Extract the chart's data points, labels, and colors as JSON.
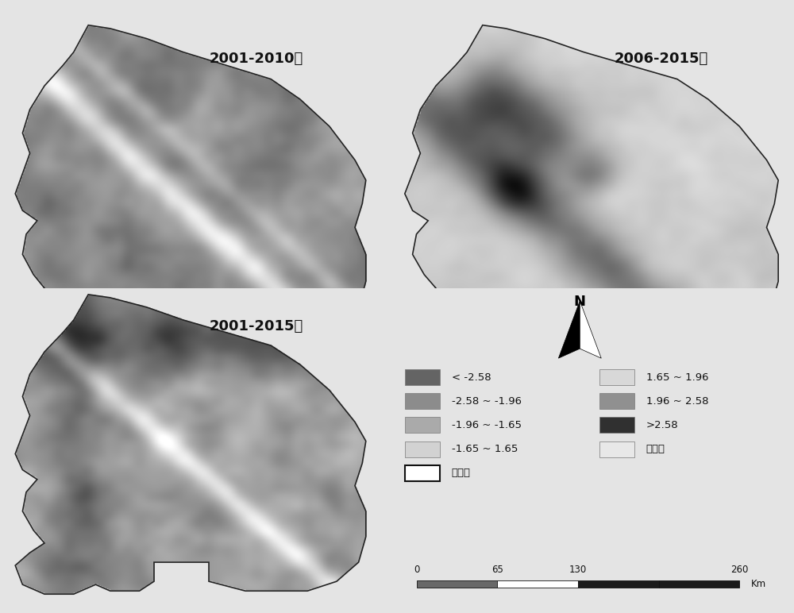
{
  "bg_color": "#e0e0e0",
  "fig_bg": "#e0e0e0",
  "map_labels": [
    "2001-2010年",
    "2006-2015年",
    "2001-2015年"
  ],
  "legend_items_left": [
    {
      "label": "< -2.58",
      "color": "#646464"
    },
    {
      "label": "-2.58 ~ -1.96",
      "color": "#8c8c8c"
    },
    {
      "label": "-1.96 ~ -1.65",
      "color": "#aaaaaa"
    },
    {
      "label": "-1.65 ~ 1.65",
      "color": "#d2d2d2"
    },
    {
      "label": "边界线",
      "color": "#ffffff",
      "outline": true
    }
  ],
  "legend_items_right": [
    {
      "label": "1.65 ~ 1.96",
      "color": "#d8d8d8"
    },
    {
      "label": "1.96 ~ 2.58",
      "color": "#909090"
    },
    {
      "label": ">2.58",
      "color": "#303030"
    },
    {
      "label": "非草地",
      "color": "#e8e8e8"
    }
  ],
  "scale_unit": "Km",
  "north_label": "N",
  "title_fontsize": 13,
  "label_fontsize": 9.5
}
